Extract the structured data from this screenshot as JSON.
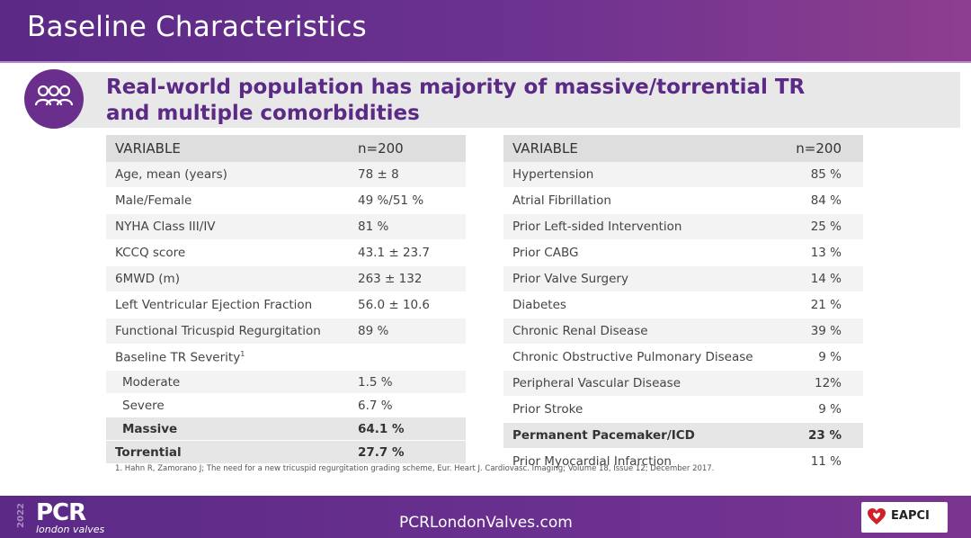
{
  "header": {
    "title": "Baseline Characteristics"
  },
  "headline": {
    "line1": "Real-world population has majority of massive/torrential TR",
    "line2": "and multiple comorbidities"
  },
  "left_table": {
    "headers": [
      "VARIABLE",
      "n=200"
    ],
    "rows": [
      [
        "Age, mean (years)",
        "78 ± 8"
      ],
      [
        "Male/Female",
        "49 %/51 %"
      ],
      [
        "NYHA Class III/IV",
        "81 %"
      ],
      [
        "KCCQ score",
        "43.1  ± 23.7"
      ],
      [
        "6MWD (m)",
        "263 ± 132"
      ],
      [
        "Left Ventricular Ejection Fraction",
        "56.0 ± 10.6"
      ],
      [
        "Functional Tricuspid Regurgitation",
        "89 %"
      ],
      [
        "Baseline TR Severity",
        ""
      ],
      [
        "Moderate",
        "1.5 %"
      ],
      [
        "Severe",
        "6.7 %"
      ],
      [
        "Massive",
        "64.1 %"
      ],
      [
        "Torrential",
        "27.7 %"
      ]
    ],
    "sup": "1"
  },
  "right_table": {
    "headers": [
      "VARIABLE",
      "n=200"
    ],
    "rows": [
      [
        "Hypertension",
        "85 %"
      ],
      [
        "Atrial Fibrillation",
        "84 %"
      ],
      [
        "Prior Left-sided Intervention",
        "25 %"
      ],
      [
        "Prior CABG",
        "13 %"
      ],
      [
        "Prior Valve Surgery",
        "14 %"
      ],
      [
        "Diabetes",
        "21 %"
      ],
      [
        "Chronic Renal Disease",
        "39 %"
      ],
      [
        "Chronic Obstructive Pulmonary Disease",
        "9 %"
      ],
      [
        "Peripheral Vascular Disease",
        "12%"
      ],
      [
        "Prior Stroke",
        "9 %"
      ],
      [
        "Permanent Pacemaker/ICD",
        "23 %"
      ],
      [
        "Prior Myocardial Infarction",
        "11 %"
      ]
    ]
  },
  "footnote": "1. Hahn R, Zamorano J; The need for a new tricuspid regurgitation grading scheme, Eur. Heart J. Cardiovasc. Imaging; Volume 18, Issue 12; December 2017.",
  "footer": {
    "year": "2022",
    "brand": "PCR",
    "sub": "london valves",
    "url": "PCRLondonValves.com",
    "partner": "EAPCI"
  },
  "icons": {
    "people": "people-group-icon",
    "heart": "heart-icon"
  },
  "colors": {
    "purple": "#5b2a86",
    "header_gray": "#dedede"
  }
}
